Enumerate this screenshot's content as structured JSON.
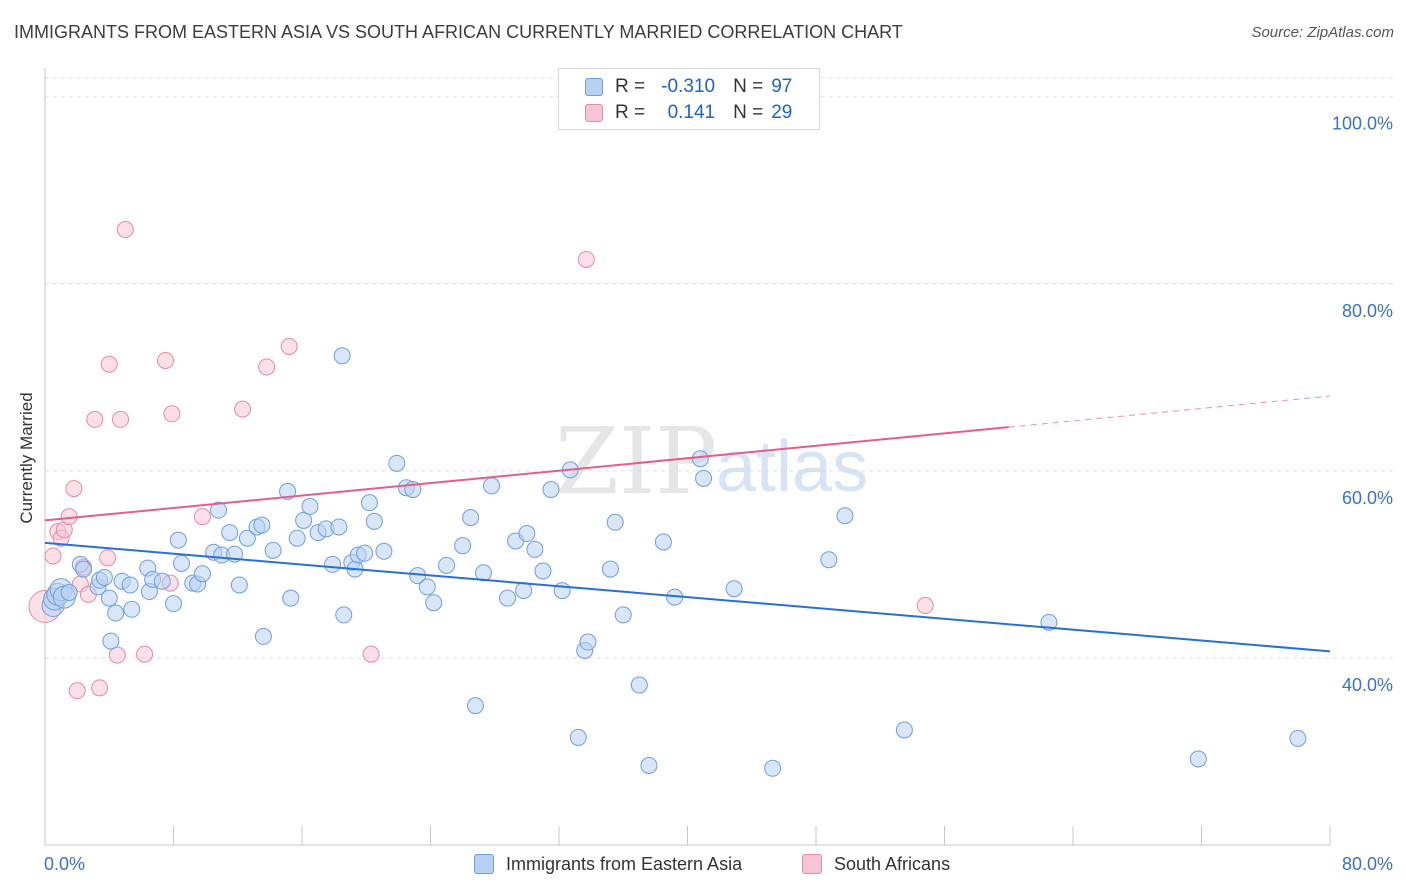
{
  "title": "IMMIGRANTS FROM EASTERN ASIA VS SOUTH AFRICAN CURRENTLY MARRIED CORRELATION CHART",
  "source": "Source: ZipAtlas.com",
  "watermark": {
    "zip": "ZIP",
    "atlas": "atlas"
  },
  "legend": {
    "blue": {
      "r_label": "R =",
      "r_value": "-0.310",
      "n_label": "N =",
      "n_value": "97"
    },
    "pink": {
      "r_label": "R =",
      "r_value": "0.141",
      "n_label": "N =",
      "n_value": "29"
    }
  },
  "bottom_legend": {
    "blue": "Immigrants from Eastern Asia",
    "pink": "South Africans"
  },
  "colors": {
    "blue_fill": "#b8d1f2",
    "blue_stroke": "#6f9fdc",
    "blue_line": "#2a70d0",
    "pink_fill": "#f7c6d5",
    "pink_stroke": "#e88aa6",
    "pink_line": "#e0608a",
    "axis_text": "#3a72c8",
    "grid": "#e0e0e0"
  },
  "chart_data": {
    "type": "scatter",
    "title": "IMMIGRANTS FROM EASTERN ASIA VS SOUTH AFRICAN CURRENTLY MARRIED CORRELATION CHART",
    "xlabel": "",
    "ylabel": "Currently Married",
    "xlim": [
      0,
      80
    ],
    "ylim": [
      20,
      102
    ],
    "x_tick_labels": [
      "0.0%",
      "80.0%"
    ],
    "y_tick_labels": [
      "40.0%",
      "60.0%",
      "80.0%",
      "100.0%"
    ],
    "y_ticks": [
      40,
      60,
      80,
      100
    ],
    "grid": true,
    "legend_position": "top-center",
    "series": [
      {
        "name": "Immigrants from Eastern Asia",
        "r": -0.31,
        "n": 97,
        "trend": {
          "x": [
            0,
            80
          ],
          "y": [
            52.3,
            40.7
          ],
          "dashed_from": null
        },
        "points": [
          [
            0.5,
            45.6
          ],
          [
            0.6,
            46.3
          ],
          [
            0.8,
            46.8
          ],
          [
            1.0,
            47.3
          ],
          [
            1.2,
            46.5
          ],
          [
            1.5,
            47.0
          ],
          [
            2.2,
            50.0
          ],
          [
            2.4,
            49.5
          ],
          [
            3.3,
            47.6
          ],
          [
            3.4,
            48.3
          ],
          [
            3.7,
            48.6
          ],
          [
            4.0,
            46.4
          ],
          [
            4.1,
            41.8
          ],
          [
            4.4,
            44.8
          ],
          [
            4.8,
            48.2
          ],
          [
            5.3,
            47.8
          ],
          [
            5.4,
            45.2
          ],
          [
            6.4,
            49.6
          ],
          [
            6.5,
            47.1
          ],
          [
            6.7,
            48.4
          ],
          [
            7.3,
            48.2
          ],
          [
            8.0,
            45.8
          ],
          [
            8.3,
            52.6
          ],
          [
            8.5,
            50.1
          ],
          [
            9.2,
            48.0
          ],
          [
            9.5,
            47.9
          ],
          [
            9.8,
            49.0
          ],
          [
            10.5,
            51.3
          ],
          [
            10.8,
            55.8
          ],
          [
            11.0,
            51.0
          ],
          [
            11.5,
            53.4
          ],
          [
            11.8,
            51.1
          ],
          [
            12.1,
            47.8
          ],
          [
            12.6,
            52.8
          ],
          [
            13.2,
            54.0
          ],
          [
            13.5,
            54.2
          ],
          [
            13.6,
            42.3
          ],
          [
            14.2,
            51.5
          ],
          [
            15.1,
            57.8
          ],
          [
            15.3,
            46.4
          ],
          [
            15.7,
            52.8
          ],
          [
            16.1,
            54.7
          ],
          [
            16.5,
            56.2
          ],
          [
            17.0,
            53.4
          ],
          [
            17.5,
            53.8
          ],
          [
            17.9,
            50.0
          ],
          [
            18.3,
            54.0
          ],
          [
            18.5,
            72.3
          ],
          [
            18.6,
            44.6
          ],
          [
            19.1,
            50.2
          ],
          [
            19.3,
            49.5
          ],
          [
            19.5,
            51.0
          ],
          [
            19.9,
            51.2
          ],
          [
            20.2,
            56.6
          ],
          [
            20.5,
            54.6
          ],
          [
            21.1,
            51.4
          ],
          [
            21.9,
            60.8
          ],
          [
            22.5,
            58.2
          ],
          [
            22.9,
            58.0
          ],
          [
            23.2,
            48.8
          ],
          [
            23.8,
            47.6
          ],
          [
            24.2,
            45.9
          ],
          [
            25.0,
            49.9
          ],
          [
            26.0,
            52.0
          ],
          [
            26.5,
            55.0
          ],
          [
            26.8,
            34.9
          ],
          [
            27.3,
            49.1
          ],
          [
            27.8,
            58.4
          ],
          [
            28.8,
            46.4
          ],
          [
            29.3,
            52.5
          ],
          [
            29.8,
            47.2
          ],
          [
            30.0,
            53.3
          ],
          [
            30.5,
            51.6
          ],
          [
            31.0,
            49.3
          ],
          [
            31.5,
            58.0
          ],
          [
            32.2,
            47.2
          ],
          [
            32.7,
            60.1
          ],
          [
            33.2,
            31.5
          ],
          [
            33.6,
            40.8
          ],
          [
            33.8,
            41.7
          ],
          [
            35.2,
            49.5
          ],
          [
            35.5,
            54.5
          ],
          [
            36.0,
            44.6
          ],
          [
            37.0,
            37.1
          ],
          [
            37.6,
            28.5
          ],
          [
            38.5,
            52.4
          ],
          [
            39.2,
            46.5
          ],
          [
            40.8,
            61.3
          ],
          [
            41.0,
            59.2
          ],
          [
            42.9,
            47.4
          ],
          [
            45.3,
            28.2
          ],
          [
            48.8,
            50.5
          ],
          [
            49.8,
            55.2
          ],
          [
            53.5,
            32.3
          ],
          [
            62.5,
            43.8
          ],
          [
            71.8,
            29.2
          ],
          [
            78.0,
            31.4
          ]
        ]
      },
      {
        "name": "South Africans",
        "r": 0.141,
        "n": 29,
        "trend": {
          "x": [
            0,
            80
          ],
          "y": [
            54.7,
            68.0
          ],
          "dashed_from": 60
        },
        "points": [
          [
            0.0,
            45.5
          ],
          [
            0.5,
            50.9
          ],
          [
            0.8,
            53.5
          ],
          [
            1.0,
            52.8
          ],
          [
            1.2,
            53.7
          ],
          [
            1.5,
            55.1
          ],
          [
            1.8,
            58.1
          ],
          [
            2.0,
            36.5
          ],
          [
            2.2,
            47.9
          ],
          [
            2.4,
            49.7
          ],
          [
            2.7,
            46.8
          ],
          [
            3.1,
            65.5
          ],
          [
            3.4,
            36.8
          ],
          [
            3.9,
            50.7
          ],
          [
            4.0,
            71.4
          ],
          [
            4.5,
            40.3
          ],
          [
            4.7,
            65.5
          ],
          [
            5.0,
            85.8
          ],
          [
            6.2,
            40.4
          ],
          [
            7.5,
            71.8
          ],
          [
            7.8,
            48.0
          ],
          [
            7.9,
            66.1
          ],
          [
            9.8,
            55.1
          ],
          [
            12.3,
            66.6
          ],
          [
            13.8,
            71.1
          ],
          [
            15.2,
            73.3
          ],
          [
            20.3,
            40.4
          ],
          [
            33.7,
            82.6
          ],
          [
            54.8,
            45.6
          ]
        ]
      }
    ]
  }
}
